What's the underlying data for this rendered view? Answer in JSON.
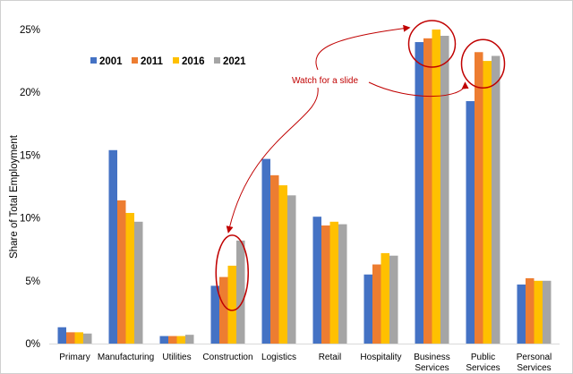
{
  "chart_data": {
    "type": "bar",
    "title": "",
    "xlabel": "",
    "ylabel": "Share of Total Employment",
    "ylim": [
      0,
      25
    ],
    "y_ticks": [
      0,
      5,
      10,
      15,
      20,
      25
    ],
    "y_tick_format": "percent",
    "grid": false,
    "legend_position": "top-left",
    "categories": [
      "Primary",
      "Manufacturing",
      "Utilities",
      "Construction",
      "Logistics",
      "Retail",
      "Hospitality",
      "Business Services",
      "Public Services",
      "Personal Services"
    ],
    "series": [
      {
        "name": "2001",
        "color": "#4472C4",
        "values": [
          1.3,
          15.4,
          0.6,
          4.6,
          14.7,
          10.1,
          5.5,
          24.0,
          19.3,
          4.7
        ]
      },
      {
        "name": "2011",
        "color": "#ED7D31",
        "values": [
          0.9,
          11.4,
          0.6,
          5.3,
          13.4,
          9.4,
          6.3,
          24.3,
          23.2,
          5.2
        ]
      },
      {
        "name": "2016",
        "color": "#FFC000",
        "values": [
          0.9,
          10.4,
          0.6,
          6.2,
          12.6,
          9.7,
          7.2,
          25.0,
          22.5,
          5.0
        ]
      },
      {
        "name": "2021",
        "color": "#A5A5A5",
        "values": [
          0.8,
          9.7,
          0.7,
          8.2,
          11.8,
          9.5,
          7.0,
          24.5,
          22.9,
          5.0
        ]
      }
    ],
    "annotation": {
      "text": "Watch for a slide",
      "color": "#C00000",
      "circled_categories": [
        "Construction",
        "Business Services",
        "Public Services"
      ]
    }
  }
}
